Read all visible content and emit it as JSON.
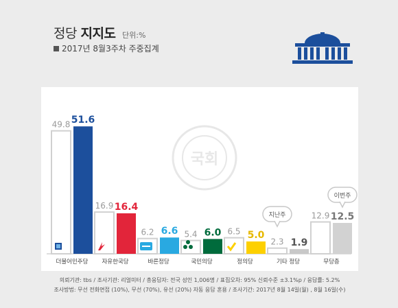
{
  "header": {
    "title_regular": "정당",
    "title_bold": "지지도",
    "unit": "단위:%",
    "subtitle": "2017년 8월3주차 주중집계"
  },
  "watermark": {
    "text": "국회"
  },
  "colors": {
    "previous_bar": "#ffffff",
    "previous_bar_border": "#d0d0d0",
    "previous_value": "#9a9a9a",
    "axis": "#bbbbbb"
  },
  "chart_data": {
    "type": "bar",
    "categories": [
      "더불어민주당",
      "자유한국당",
      "바른정당",
      "국민의당",
      "정의당",
      "기타 정당",
      "무당층"
    ],
    "series": [
      {
        "name": "지난주",
        "values": [
          49.8,
          16.9,
          6.2,
          5.4,
          6.5,
          2.3,
          12.9
        ]
      },
      {
        "name": "이번주",
        "values": [
          51.6,
          16.4,
          6.6,
          6.0,
          5.0,
          1.9,
          12.5
        ]
      }
    ],
    "current_colors": [
      "#1c4f9c",
      "#e2253a",
      "#29a9e1",
      "#006b3c",
      "#fdd000",
      "#c8c8c8",
      "#d2d2d2"
    ],
    "value_label_colors": [
      "#1c4f9c",
      "#e2253a",
      "#29a9e1",
      "#006b3c",
      "#e6b800",
      "#555555",
      "#777777"
    ],
    "ylim": [
      0,
      55
    ],
    "title": "정당 지지도",
    "callouts": {
      "previous": "지난주",
      "current": "이번주"
    }
  },
  "footer": {
    "line1": "의뢰기관: tbs / 조사기관: 리얼미터 / 총응답자: 전국 성인 1,006명 / 표집오차: 95% 신뢰수준 ±3.1%p / 응답률: 5.2%",
    "line2": "조사방법: 무선 전화면접 (10%), 무선 (70%), 유선 (20%) 자동 응답 혼용 / 조사기간: 2017년 8월 14일(월) , 8월 16일(수)"
  }
}
